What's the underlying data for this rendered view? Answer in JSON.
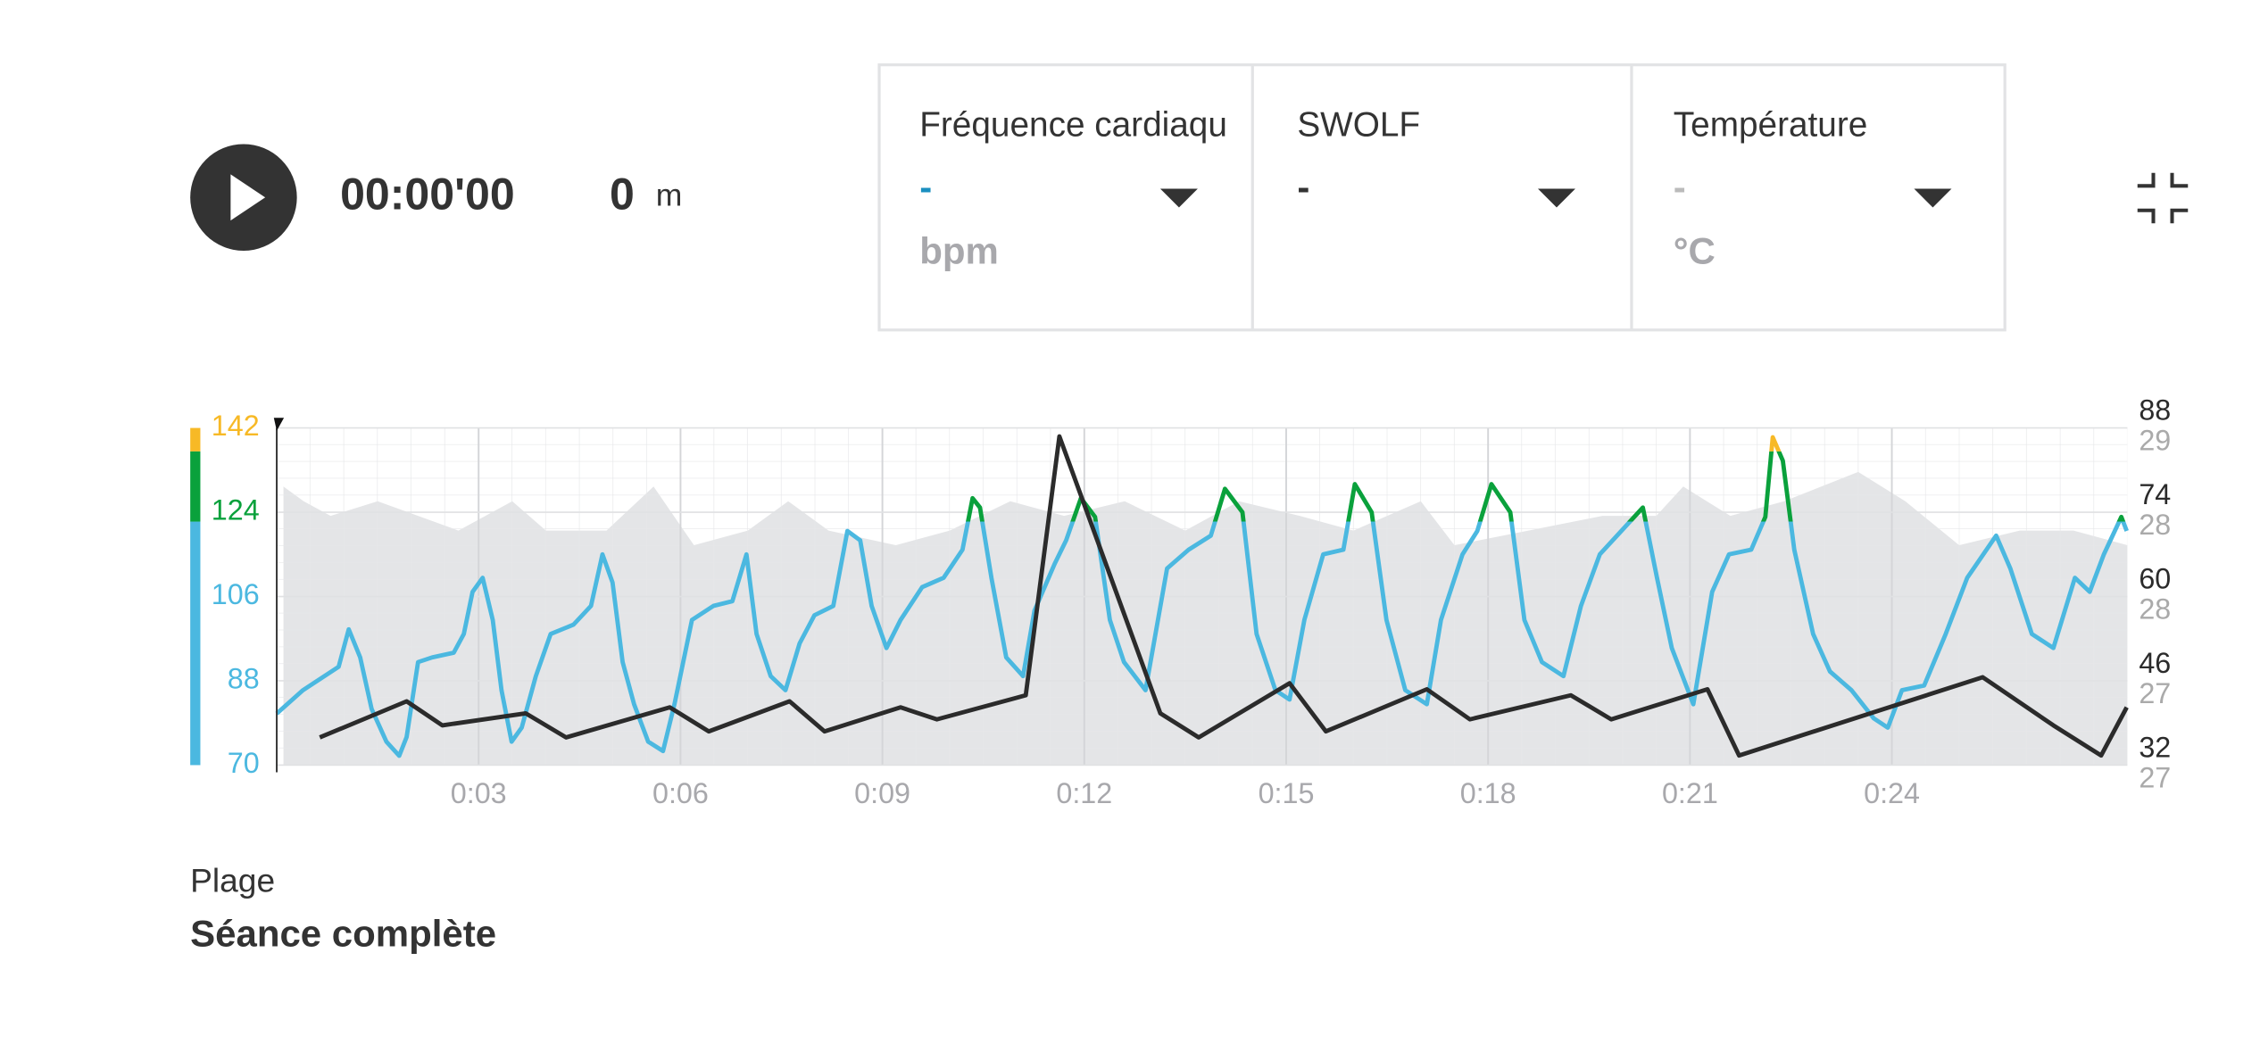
{
  "header": {
    "time": "00:00'00",
    "distance": "0",
    "distance_unit": "m"
  },
  "metrics": [
    {
      "label": "Fréquence cardiaqu",
      "value": "-",
      "unit": "bpm",
      "color": "#1a8fc0"
    },
    {
      "label": "SWOLF",
      "value": "-",
      "color": "#333333"
    },
    {
      "label": "Température",
      "value": "-",
      "unit": "°C",
      "color": "#bbbbbb"
    }
  ],
  "chart_data": {
    "type": "line",
    "xlim": [
      0,
      27.5
    ],
    "xticks": [
      {
        "value": 3,
        "label": "0:03"
      },
      {
        "value": 6,
        "label": "0:06"
      },
      {
        "value": 9,
        "label": "0:09"
      },
      {
        "value": 12,
        "label": "0:12"
      },
      {
        "value": 15,
        "label": "0:15"
      },
      {
        "value": 18,
        "label": "0:18"
      },
      {
        "value": 21,
        "label": "0:21"
      },
      {
        "value": 24,
        "label": "0:24"
      }
    ],
    "ylim": [
      70,
      142
    ],
    "yticks": [
      70,
      88,
      106,
      124,
      142
    ],
    "y2lim": [
      29.4,
      85.4
    ],
    "y2ticks": [
      32,
      46,
      60,
      74,
      88
    ],
    "y2color": "#2b2b2b",
    "y3lim": [
      26.7,
      29.0
    ],
    "y3ticks": [
      {
        "value": 26.6,
        "label": "27"
      },
      {
        "value": 27.175,
        "label": "27"
      },
      {
        "value": 27.75,
        "label": "28"
      },
      {
        "value": 28.325,
        "label": "28"
      },
      {
        "value": 28.9,
        "label": "29"
      }
    ],
    "y3color": "#aaaaaa",
    "grid": true,
    "zones": [
      {
        "from": 70,
        "to": 122,
        "color": "#4bb8e0"
      },
      {
        "from": 122,
        "to": 137,
        "color": "#0aa13c"
      },
      {
        "from": 137,
        "to": 142,
        "color": "#f7b926"
      }
    ],
    "series": [
      {
        "type": "area",
        "axis": "y3",
        "color": "#e4e5e7",
        "x": [
          0.1,
          0.4,
          0.8,
          1.5,
          2.1,
          2.7,
          3.5,
          4.0,
          4.9,
          5.6,
          6.2,
          7.0,
          7.6,
          8.2,
          9.2,
          10.0,
          10.9,
          11.7,
          12.6,
          13.5,
          14.3,
          15.2,
          16.0,
          17.0,
          17.5,
          18.6,
          19.7,
          20.5,
          20.9,
          21.6,
          22.4,
          23.5,
          24.2,
          25.0,
          25.9,
          26.7,
          27.5
        ],
        "values": [
          28.6,
          28.5,
          28.4,
          28.5,
          28.4,
          28.3,
          28.5,
          28.3,
          28.3,
          28.6,
          28.2,
          28.3,
          28.5,
          28.3,
          28.2,
          28.3,
          28.5,
          28.4,
          28.5,
          28.3,
          28.5,
          28.4,
          28.3,
          28.5,
          28.2,
          28.3,
          28.4,
          28.4,
          28.6,
          28.4,
          28.5,
          28.7,
          28.5,
          28.2,
          28.3,
          28.3,
          28.2
        ]
      },
      {
        "type": "line",
        "color": "#4bb8e0",
        "x": [
          0.0,
          0.39,
          0.92,
          1.07,
          1.24,
          1.41,
          1.63,
          1.82,
          1.93,
          2.1,
          2.31,
          2.63,
          2.78,
          2.91,
          3.06,
          3.21,
          3.34,
          3.49,
          3.64,
          3.85,
          4.07,
          4.41,
          4.67,
          4.84,
          4.99,
          5.14,
          5.31,
          5.52,
          5.74,
          5.91,
          6.17,
          6.49,
          6.77,
          6.98,
          7.13,
          7.34,
          7.56,
          7.77,
          7.99,
          8.27,
          8.48,
          8.67,
          8.84,
          9.06,
          9.27,
          9.59,
          9.91,
          10.19,
          10.34,
          10.45,
          10.62,
          10.84,
          11.09,
          11.26,
          11.56,
          11.73,
          11.95,
          12.16,
          12.38,
          12.59,
          12.91,
          13.23,
          13.55,
          13.88,
          14.09,
          14.35,
          14.56,
          14.84,
          15.05,
          15.27,
          15.55,
          15.85,
          16.02,
          16.27,
          16.49,
          16.77,
          17.09,
          17.3,
          17.62,
          17.84,
          18.05,
          18.33,
          18.54,
          18.8,
          19.12,
          19.38,
          19.66,
          19.98,
          20.3,
          20.51,
          20.73,
          21.05,
          21.33,
          21.58,
          21.91,
          22.12,
          22.23,
          22.38,
          22.55,
          22.83,
          23.08,
          23.4,
          23.73,
          23.94,
          24.15,
          24.48,
          24.8,
          25.12,
          25.55,
          25.76,
          26.08,
          26.4,
          26.72,
          26.94,
          27.15,
          27.41,
          27.49
        ],
        "values": [
          81,
          86,
          91,
          99,
          93,
          82,
          75,
          72,
          76,
          92,
          93,
          94,
          98,
          107,
          110,
          101,
          86,
          75,
          78,
          89,
          98,
          100,
          104,
          115,
          109,
          92,
          83,
          75,
          73,
          83,
          101,
          104,
          105,
          115,
          98,
          89,
          86,
          96,
          102,
          104,
          120,
          118,
          104,
          95,
          101,
          108,
          110,
          116,
          127,
          125,
          110,
          93,
          89,
          103,
          113,
          118,
          127,
          123,
          101,
          92,
          86,
          112,
          116,
          119,
          129,
          124,
          98,
          86,
          84,
          101,
          115,
          116,
          130,
          124,
          101,
          86,
          83,
          101,
          115,
          120,
          130,
          124,
          101,
          92,
          89,
          104,
          115,
          120,
          125,
          110,
          95,
          83,
          107,
          115,
          116,
          123,
          140,
          135,
          116,
          98,
          90,
          86,
          80,
          78,
          86,
          87,
          98,
          110,
          119,
          112,
          98,
          95,
          110,
          107,
          115,
          123,
          120
        ]
      },
      {
        "type": "line",
        "axis": "y2",
        "color": "#2b2b2b",
        "x": [
          0.64,
          1.93,
          2.46,
          3.7,
          4.3,
          5.84,
          6.42,
          7.62,
          8.14,
          9.27,
          9.81,
          11.13,
          11.63,
          12.38,
          13.13,
          13.7,
          15.05,
          15.59,
          17.09,
          17.73,
          19.23,
          19.83,
          21.26,
          21.73,
          25.35,
          26.4,
          27.11,
          27.49
        ],
        "values": [
          34,
          40,
          36,
          38,
          34,
          39,
          35,
          40,
          35,
          39,
          37,
          41,
          84,
          61,
          38,
          34,
          43,
          35,
          42,
          37,
          41,
          37,
          42,
          31,
          44,
          36,
          31,
          39
        ]
      }
    ]
  },
  "footer": {
    "label": "Plage",
    "value": "Séance complète"
  }
}
